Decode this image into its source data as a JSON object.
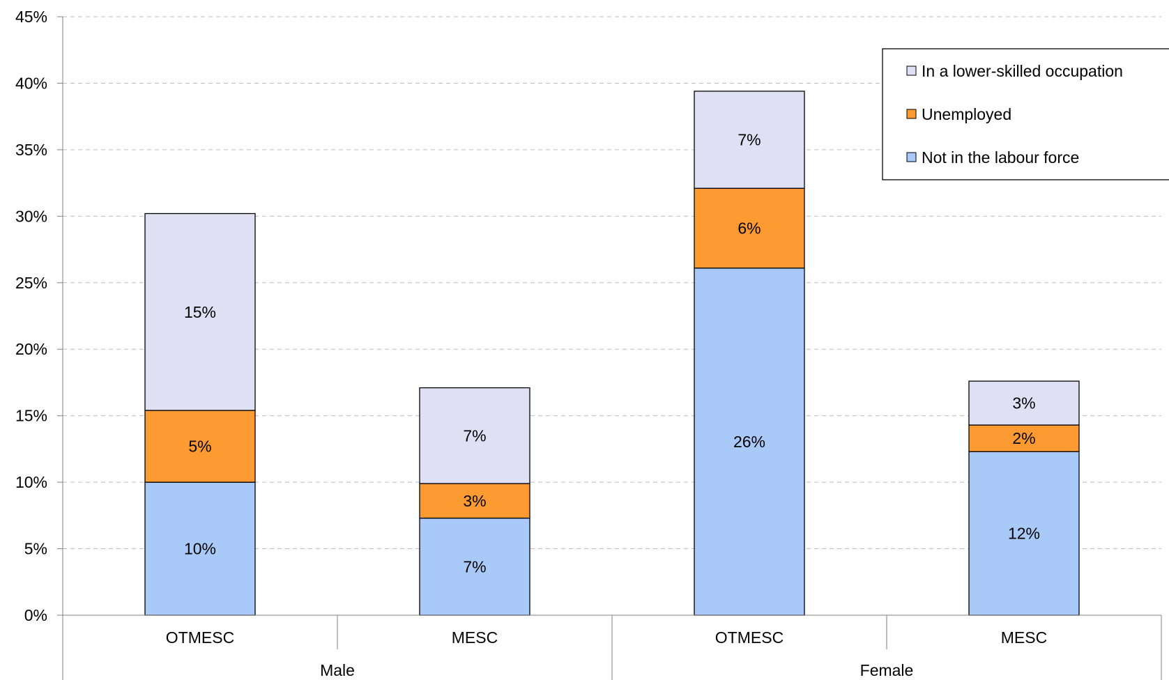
{
  "chart_data": {
    "type": "bar",
    "stacked": true,
    "groups": [
      {
        "label": "Male",
        "categories": [
          "OTMESC",
          "MESC"
        ]
      },
      {
        "label": "Female",
        "categories": [
          "OTMESC",
          "MESC"
        ]
      }
    ],
    "categories": [
      "OTMESC",
      "MESC",
      "OTMESC",
      "MESC"
    ],
    "series": [
      {
        "name": "Not in the labour force",
        "color": "#a9c9f8",
        "values": [
          10,
          7.3,
          26.1,
          12.3
        ],
        "labels": [
          "10%",
          "7%",
          "26%",
          "12%"
        ]
      },
      {
        "name": "Unemployed",
        "color": "#fd9a32",
        "values": [
          5.4,
          2.6,
          6,
          2
        ],
        "labels": [
          "5%",
          "3%",
          "6%",
          "2%"
        ]
      },
      {
        "name": "In a lower-skilled occupation",
        "color": "#e0e0f5",
        "values": [
          14.8,
          7.2,
          7.3,
          3.3
        ],
        "labels": [
          "15%",
          "7%",
          "7%",
          "3%"
        ]
      }
    ],
    "y_ticks": [
      "0%",
      "5%",
      "10%",
      "15%",
      "20%",
      "25%",
      "30%",
      "35%",
      "40%",
      "45%"
    ],
    "ylim": [
      0,
      45
    ],
    "grid": true,
    "legend_position": "top-right",
    "legend_order": [
      "In a lower-skilled occupation",
      "Unemployed",
      "Not in the labour force"
    ]
  }
}
